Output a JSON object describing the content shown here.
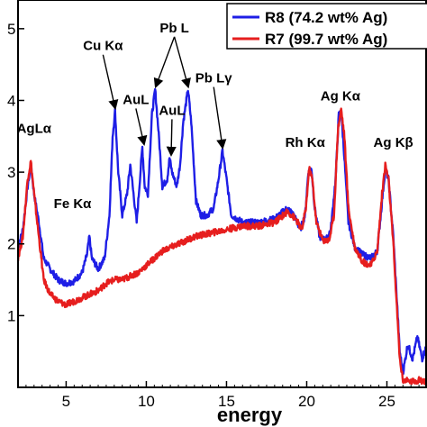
{
  "chart_data": {
    "type": "line",
    "xlabel": "energy",
    "ylabel": "",
    "xlim": [
      2.0,
      27.5
    ],
    "ylim": [
      0.0,
      5.4
    ],
    "x_ticks": [
      5,
      10,
      15,
      20,
      25
    ],
    "y_ticks": [
      1,
      2,
      3,
      4,
      5
    ],
    "y_tick_labels": [
      "1",
      "2",
      "3",
      "4",
      "5"
    ],
    "grid": false,
    "legend_position": "top-right",
    "series": [
      {
        "name": "R8 (74.2 wt% Ag)",
        "color": "#1e1ee6",
        "points": [
          [
            2.0,
            1.95
          ],
          [
            2.3,
            2.2
          ],
          [
            2.6,
            2.8
          ],
          [
            2.8,
            3.1
          ],
          [
            3.0,
            2.7
          ],
          [
            3.3,
            2.3
          ],
          [
            3.6,
            1.8
          ],
          [
            4.0,
            1.65
          ],
          [
            4.5,
            1.5
          ],
          [
            5.0,
            1.45
          ],
          [
            5.5,
            1.48
          ],
          [
            6.0,
            1.6
          ],
          [
            6.3,
            1.85
          ],
          [
            6.45,
            2.1
          ],
          [
            6.6,
            1.8
          ],
          [
            7.0,
            1.65
          ],
          [
            7.4,
            1.8
          ],
          [
            7.7,
            2.4
          ],
          [
            7.9,
            3.5
          ],
          [
            8.05,
            3.85
          ],
          [
            8.25,
            3.0
          ],
          [
            8.5,
            2.4
          ],
          [
            8.8,
            2.7
          ],
          [
            9.0,
            3.1
          ],
          [
            9.2,
            2.7
          ],
          [
            9.4,
            2.3
          ],
          [
            9.6,
            2.9
          ],
          [
            9.75,
            3.35
          ],
          [
            9.9,
            2.8
          ],
          [
            10.1,
            2.7
          ],
          [
            10.35,
            3.8
          ],
          [
            10.55,
            4.15
          ],
          [
            10.75,
            3.6
          ],
          [
            11.0,
            2.8
          ],
          [
            11.3,
            2.9
          ],
          [
            11.45,
            3.2
          ],
          [
            11.6,
            3.0
          ],
          [
            11.9,
            2.8
          ],
          [
            12.1,
            3.1
          ],
          [
            12.3,
            3.7
          ],
          [
            12.6,
            4.15
          ],
          [
            12.8,
            3.7
          ],
          [
            13.1,
            2.6
          ],
          [
            13.4,
            2.4
          ],
          [
            13.8,
            2.4
          ],
          [
            14.2,
            2.5
          ],
          [
            14.5,
            2.9
          ],
          [
            14.75,
            3.3
          ],
          [
            15.0,
            2.9
          ],
          [
            15.3,
            2.4
          ],
          [
            16.0,
            2.3
          ],
          [
            17.0,
            2.3
          ],
          [
            18.0,
            2.35
          ],
          [
            18.8,
            2.5
          ],
          [
            19.2,
            2.4
          ],
          [
            19.6,
            2.2
          ],
          [
            19.9,
            2.4
          ],
          [
            20.1,
            3.0
          ],
          [
            20.3,
            3.05
          ],
          [
            20.5,
            2.5
          ],
          [
            20.8,
            2.1
          ],
          [
            21.2,
            2.05
          ],
          [
            21.5,
            2.2
          ],
          [
            21.8,
            2.9
          ],
          [
            22.0,
            3.8
          ],
          [
            22.15,
            3.85
          ],
          [
            22.35,
            3.2
          ],
          [
            22.6,
            2.3
          ],
          [
            23.0,
            1.95
          ],
          [
            23.5,
            1.85
          ],
          [
            24.0,
            1.8
          ],
          [
            24.4,
            1.9
          ],
          [
            24.7,
            2.6
          ],
          [
            24.9,
            3.05
          ],
          [
            25.1,
            2.9
          ],
          [
            25.4,
            2.1
          ],
          [
            25.6,
            1.3
          ],
          [
            25.8,
            0.5
          ],
          [
            26.0,
            0.2
          ],
          [
            26.3,
            0.6
          ],
          [
            26.6,
            0.4
          ],
          [
            26.9,
            0.7
          ],
          [
            27.2,
            0.4
          ],
          [
            27.5,
            0.6
          ]
        ]
      },
      {
        "name": "R7 (99.7 wt% Ag)",
        "color": "#e61e1e",
        "points": [
          [
            2.0,
            1.8
          ],
          [
            2.3,
            2.1
          ],
          [
            2.6,
            2.9
          ],
          [
            2.8,
            3.15
          ],
          [
            3.0,
            2.7
          ],
          [
            3.3,
            2.1
          ],
          [
            3.6,
            1.5
          ],
          [
            4.0,
            1.3
          ],
          [
            4.5,
            1.2
          ],
          [
            5.0,
            1.15
          ],
          [
            5.5,
            1.2
          ],
          [
            6.0,
            1.25
          ],
          [
            6.5,
            1.3
          ],
          [
            7.0,
            1.35
          ],
          [
            7.5,
            1.45
          ],
          [
            8.0,
            1.5
          ],
          [
            8.5,
            1.5
          ],
          [
            9.0,
            1.55
          ],
          [
            9.5,
            1.6
          ],
          [
            10.0,
            1.7
          ],
          [
            10.5,
            1.8
          ],
          [
            11.0,
            1.9
          ],
          [
            11.5,
            1.95
          ],
          [
            12.0,
            2.0
          ],
          [
            12.5,
            2.05
          ],
          [
            13.0,
            2.1
          ],
          [
            14.0,
            2.15
          ],
          [
            15.0,
            2.2
          ],
          [
            16.0,
            2.25
          ],
          [
            17.0,
            2.25
          ],
          [
            18.0,
            2.3
          ],
          [
            18.8,
            2.45
          ],
          [
            19.3,
            2.35
          ],
          [
            19.7,
            2.2
          ],
          [
            19.95,
            2.5
          ],
          [
            20.15,
            3.05
          ],
          [
            20.35,
            2.9
          ],
          [
            20.6,
            2.3
          ],
          [
            21.0,
            2.05
          ],
          [
            21.4,
            2.05
          ],
          [
            21.7,
            2.4
          ],
          [
            21.95,
            3.6
          ],
          [
            22.15,
            3.88
          ],
          [
            22.35,
            3.5
          ],
          [
            22.6,
            2.5
          ],
          [
            23.0,
            1.95
          ],
          [
            23.5,
            1.75
          ],
          [
            24.0,
            1.7
          ],
          [
            24.4,
            1.9
          ],
          [
            24.7,
            2.7
          ],
          [
            24.9,
            3.1
          ],
          [
            25.1,
            2.9
          ],
          [
            25.4,
            2.0
          ],
          [
            25.6,
            1.2
          ],
          [
            25.8,
            0.4
          ],
          [
            26.0,
            0.1
          ],
          [
            26.5,
            0.08
          ],
          [
            27.0,
            0.1
          ],
          [
            27.5,
            0.08
          ]
        ]
      }
    ],
    "annotations": [
      {
        "text": "AgLα",
        "x": 3.0,
        "y": 3.55,
        "arrow": false
      },
      {
        "text": "Fe Kα",
        "x": 5.4,
        "y": 2.5,
        "arrow": false
      },
      {
        "text": "Cu Kα",
        "x": 7.3,
        "y": 4.7,
        "arrow": true,
        "arrow_x": 8.05,
        "arrow_y": 3.9
      },
      {
        "text": "AuL",
        "x": 9.35,
        "y": 3.95,
        "arrow": true,
        "arrow_x": 9.85,
        "arrow_y": 3.4
      },
      {
        "text": "AuL",
        "x": 11.6,
        "y": 3.8,
        "arrow": true,
        "arrow_x": 11.55,
        "arrow_y": 3.25
      },
      {
        "text": "Pb L",
        "x": 11.75,
        "y": 4.95,
        "arrow": true,
        "arrow_x": 10.6,
        "arrow_y": 4.2
      },
      {
        "text": "",
        "x": 11.75,
        "y": 4.95,
        "arrow": true,
        "arrow_x": 12.6,
        "arrow_y": 4.2
      },
      {
        "text": "Pb Lγ",
        "x": 14.2,
        "y": 4.25,
        "arrow": true,
        "arrow_x": 14.75,
        "arrow_y": 3.35
      },
      {
        "text": "Rh Kα",
        "x": 19.9,
        "y": 3.35,
        "arrow": false
      },
      {
        "text": "Ag Kα",
        "x": 22.1,
        "y": 4.0,
        "arrow": false
      },
      {
        "text": "Ag Kβ",
        "x": 25.4,
        "y": 3.35,
        "arrow": false
      }
    ]
  }
}
